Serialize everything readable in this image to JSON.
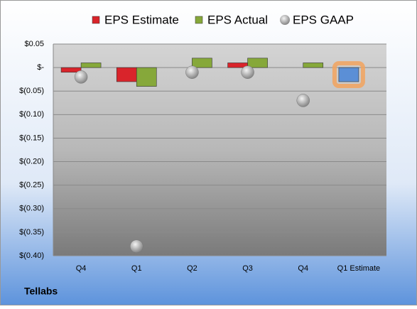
{
  "chart_data": {
    "type": "bar",
    "categories": [
      "Q4",
      "Q1",
      "Q2",
      "Q3",
      "Q4",
      "Q1 Estimate"
    ],
    "series": [
      {
        "name": "EPS Estimate",
        "color": "#d9242b",
        "values": [
          -0.01,
          -0.03,
          null,
          0.01,
          null,
          -0.03
        ],
        "highlight": {
          "index": 5,
          "color": "#5b8fd6"
        }
      },
      {
        "name": "EPS Actual",
        "color": "#86a83a",
        "values": [
          0.01,
          -0.04,
          0.02,
          0.02,
          0.01,
          null
        ]
      },
      {
        "name": "EPS GAAP",
        "color": "#a8a8a8",
        "values": [
          -0.02,
          -0.38,
          -0.01,
          -0.01,
          -0.07,
          null
        ],
        "marker": "circle"
      }
    ],
    "ylim": [
      -0.4,
      0.05
    ],
    "yticks": [
      {
        "value": 0.05,
        "label": "$0.05"
      },
      {
        "value": 0,
        "label": "$-"
      },
      {
        "value": -0.05,
        "label": "$(0.05)"
      },
      {
        "value": -0.1,
        "label": "$(0.10)"
      },
      {
        "value": -0.15,
        "label": "$(0.15)"
      },
      {
        "value": -0.2,
        "label": "$(0.20)"
      },
      {
        "value": -0.25,
        "label": "$(0.25)"
      },
      {
        "value": -0.3,
        "label": "$(0.30)"
      },
      {
        "value": -0.35,
        "label": "$(0.35)"
      },
      {
        "value": -0.4,
        "label": "$(0.40)"
      }
    ],
    "grid": true,
    "footer": "Tellabs"
  }
}
